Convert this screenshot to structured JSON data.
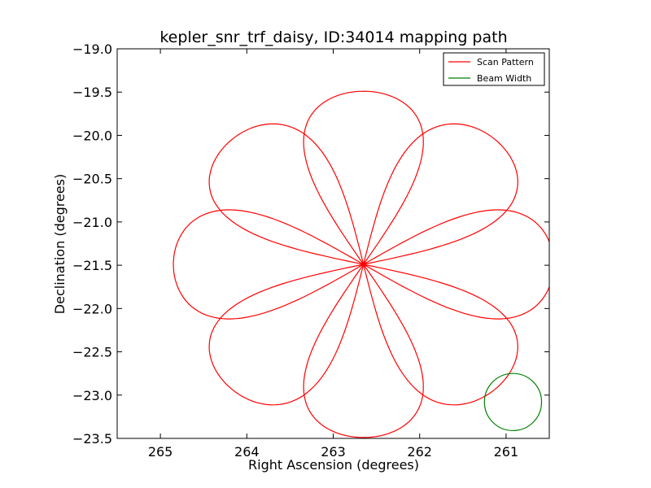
{
  "chart_data": {
    "type": "line",
    "title": "kepler_snr_trf_daisy, ID:34014 mapping path",
    "xlabel": "Right Ascension (degrees)",
    "ylabel": "Declination (degrees)",
    "xlim": [
      265.5,
      260.5
    ],
    "ylim": [
      -23.5,
      -19.0
    ],
    "x_ticks": [
      265,
      264,
      263,
      262,
      261
    ],
    "x_tick_labels": [
      "265",
      "264",
      "263",
      "262",
      "261"
    ],
    "y_ticks": [
      -19.0,
      -19.5,
      -20.0,
      -20.5,
      -21.0,
      -21.5,
      -22.0,
      -22.5,
      -23.0,
      -23.5
    ],
    "y_tick_labels": [
      "−19.0",
      "−19.5",
      "−20.0",
      "−20.5",
      "−21.0",
      "−21.5",
      "−22.0",
      "−22.5",
      "−23.0",
      "−23.5"
    ],
    "grid": false,
    "legend_position": "top-right",
    "series": [
      {
        "name": "Scan Pattern",
        "color": "#ff0000",
        "shape": "rose",
        "petals": 8,
        "center": [
          262.65,
          -21.49
        ],
        "radius_ra": 2.2,
        "radius_dec": 2.0,
        "petal_half_width": 0.3
      },
      {
        "name": "Beam Width",
        "color": "#008000",
        "shape": "circle",
        "center": [
          260.92,
          -23.08
        ],
        "radius_dec": 0.33
      }
    ]
  }
}
